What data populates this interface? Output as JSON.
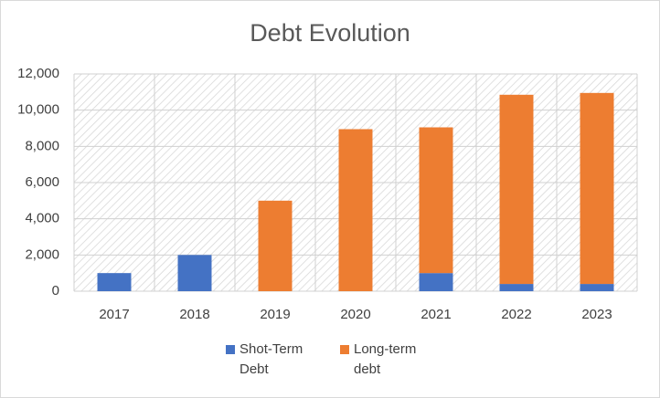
{
  "chart_data": {
    "type": "bar",
    "stacked": true,
    "title": "Debt Evolution",
    "categories": [
      "2017",
      "2018",
      "2019",
      "2020",
      "2021",
      "2022",
      "2023"
    ],
    "series": [
      {
        "name": "Shot-Term Debt",
        "color": "#4472c4",
        "values": [
          1000,
          2000,
          0,
          0,
          1000,
          400,
          400
        ]
      },
      {
        "name": "Long-term debt",
        "color": "#ed7d31",
        "values": [
          0,
          0,
          5000,
          8950,
          8050,
          10450,
          10550
        ]
      }
    ],
    "ylim": [
      0,
      12000
    ],
    "yticks": [
      0,
      {
        "value": 2000,
        "label": "2,000"
      },
      {
        "value": 4000,
        "label": "4,000"
      },
      {
        "value": 6000,
        "label": "6,000"
      },
      {
        "value": 8000,
        "label": "8,000"
      },
      {
        "value": 10000,
        "label": "10,000"
      },
      {
        "value": 12000,
        "label": "12,000"
      }
    ],
    "grid": true,
    "legend": "bottom"
  }
}
